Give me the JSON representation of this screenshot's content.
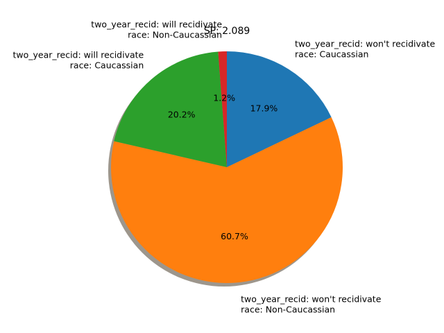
{
  "chart_data": {
    "type": "pie",
    "title": "SP: 2.089",
    "shadow": true,
    "start_angle_deg": 90,
    "direction": "clockwise",
    "slices": [
      {
        "label_line1": "two_year_recid: won't recidivate",
        "label_line2": "race: Caucassian",
        "value": 17.9,
        "pct_label": "17.9%",
        "color": "#1f77b4"
      },
      {
        "label_line1": "two_year_recid: won't recidivate",
        "label_line2": "race: Non-Caucassian",
        "value": 60.7,
        "pct_label": "60.7%",
        "color": "#ff7f0e"
      },
      {
        "label_line1": "two_year_recid: will recidivate",
        "label_line2": "race: Caucassian",
        "value": 20.2,
        "pct_label": "20.2%",
        "color": "#2ca02c"
      },
      {
        "label_line1": "two_year_recid: will recidivate",
        "label_line2": "race: Non-Caucassian",
        "value": 1.2,
        "pct_label": "1.2%",
        "color": "#d62728"
      }
    ]
  }
}
